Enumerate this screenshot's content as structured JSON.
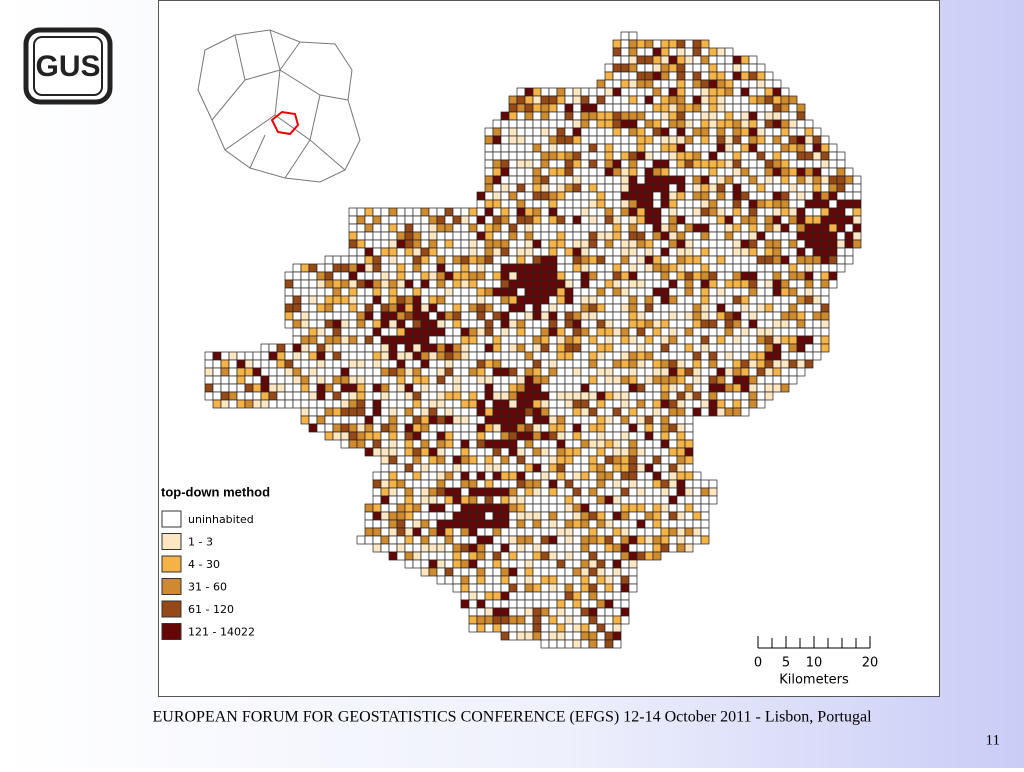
{
  "logo": {
    "text": "GUS"
  },
  "map": {
    "legend": {
      "title": "top-down method",
      "items": [
        {
          "label": "uninhabited",
          "color": "#ffffff"
        },
        {
          "label": "1 - 3",
          "color": "#fde6c2"
        },
        {
          "label": "4 - 30",
          "color": "#f4b247"
        },
        {
          "label": "31 - 60",
          "color": "#cf8a30"
        },
        {
          "label": "61 - 120",
          "color": "#964816"
        },
        {
          "label": "121 - 14022",
          "color": "#650805"
        }
      ]
    },
    "scale_bar": {
      "ticks": [
        0,
        5,
        10,
        20
      ],
      "unit": "Kilometers"
    }
  },
  "footer": {
    "text": "EUROPEAN FORUM FOR GEOSTATISTICS CONFERENCE (EFGS) 12-14 October 2011 - Lisbon, Portugal",
    "page_number": "11"
  }
}
